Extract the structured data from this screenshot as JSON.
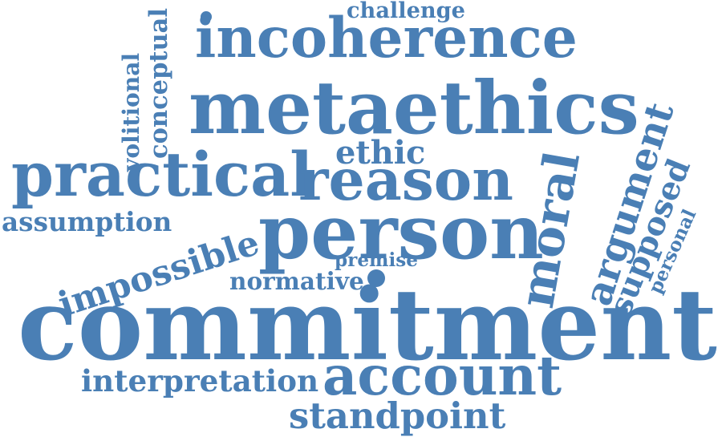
{
  "cloud": {
    "color": "#4a7fb5",
    "background": "#ffffff",
    "words": [
      {
        "text": "challenge"
      },
      {
        "text": "conceptual"
      },
      {
        "text": "volitional"
      },
      {
        "text": "incoherence"
      },
      {
        "text": "metaethics"
      },
      {
        "text": "ethic"
      },
      {
        "text": "practical"
      },
      {
        "text": "reason"
      },
      {
        "text": "argument"
      },
      {
        "text": "moral"
      },
      {
        "text": "supposed"
      },
      {
        "text": "personal"
      },
      {
        "text": "assumption"
      },
      {
        "text": "impossible"
      },
      {
        "text": "person"
      },
      {
        "text": "premise"
      },
      {
        "text": "normative"
      },
      {
        "text": "commitment"
      },
      {
        "text": "interpretation"
      },
      {
        "text": "account"
      },
      {
        "text": "standpoint"
      }
    ]
  }
}
